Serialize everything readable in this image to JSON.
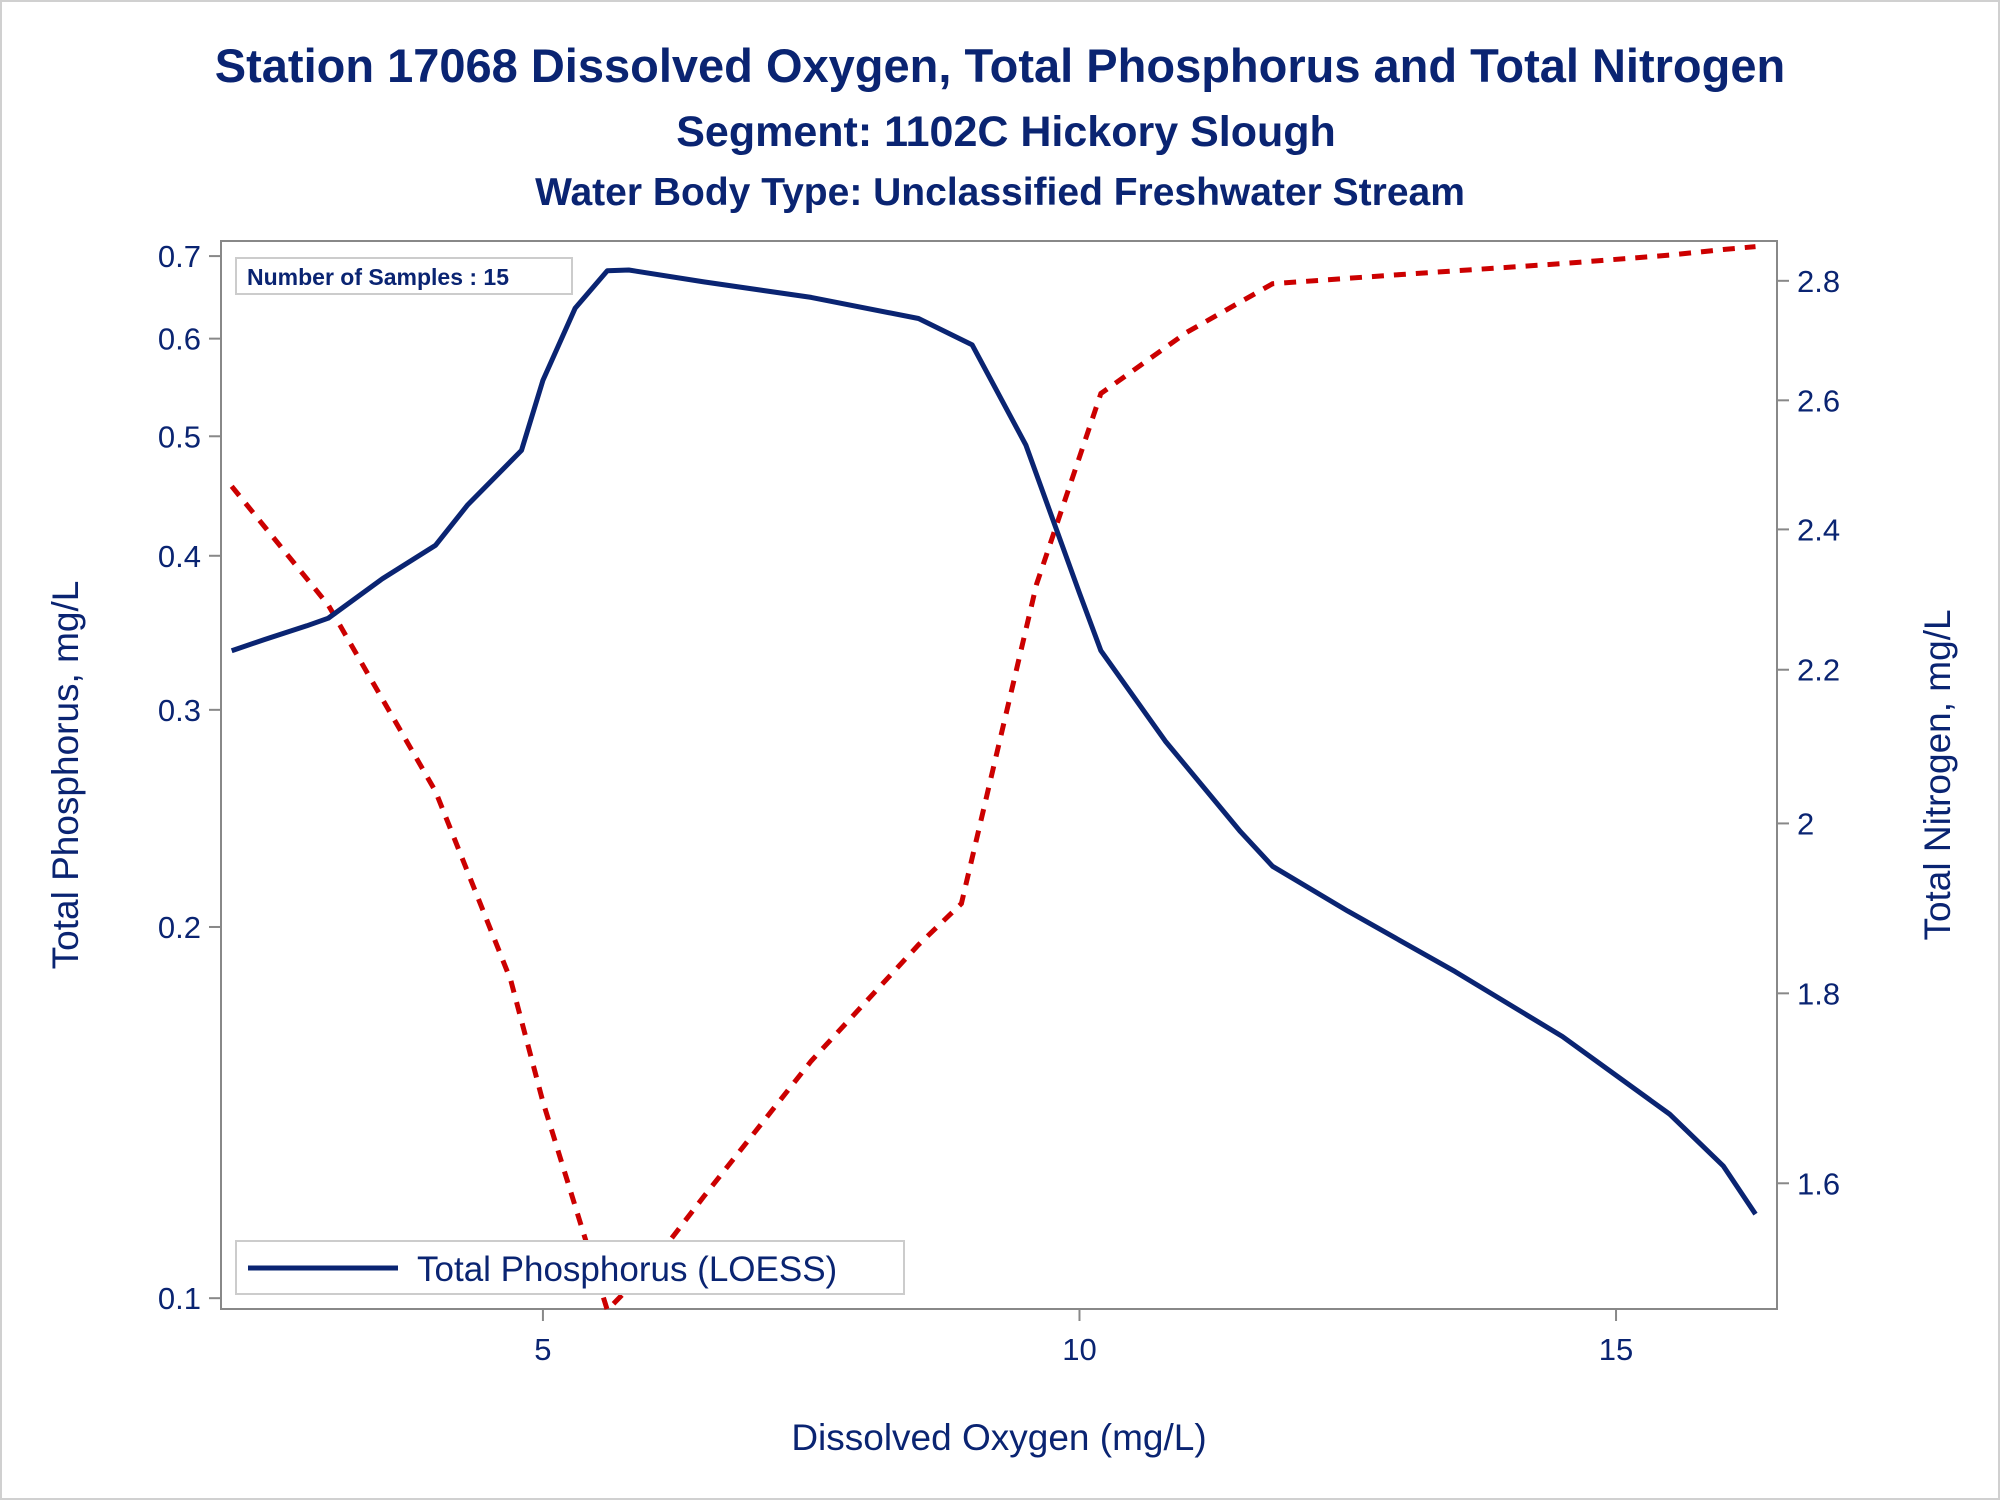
{
  "colors": {
    "text": "#0a2472",
    "tp_line": "#0a2472",
    "tn_line": "#cc0000",
    "axis": "#888888"
  },
  "titles": {
    "line1": "Station 17068  Dissolved Oxygen, Total Phosphorus and Total Nitrogen",
    "line2": "Segment: 1102C  Hickory Slough",
    "line3": "Water Body Type: Unclassified Freshwater Stream"
  },
  "inset": {
    "samples_label": "Number of Samples : 15"
  },
  "chart_data": {
    "type": "line",
    "title": "Station 17068  Dissolved Oxygen, Total Phosphorus and Total Nitrogen",
    "xlabel": "Dissolved Oxygen (mg/L)",
    "ylabel_left": "Total Phosphorus, mg/L",
    "ylabel_right": "Total Nitrogen, mg/L",
    "x_ticks": [
      "5",
      "10",
      "15"
    ],
    "y_left_ticks": [
      "0.1",
      "0.2",
      "0.3",
      "0.4",
      "0.5",
      "0.6",
      "0.7"
    ],
    "y_right_ticks": [
      "1.6",
      "1.8",
      "2",
      "2.2",
      "2.4",
      "2.6",
      "2.8"
    ],
    "xlim": [
      2.0,
      16.5
    ],
    "y_left_scale": "log",
    "y_left_lim": [
      0.098,
      0.72
    ],
    "y_right_scale": "log",
    "y_right_lim": [
      1.48,
      2.87
    ],
    "legend_position": "bottom-left",
    "grid": false,
    "series": [
      {
        "name": "Total Phosphorus (LOESS)",
        "axis": "left",
        "style": "solid",
        "x": [
          2.1,
          2.4,
          2.8,
          3.0,
          3.5,
          4.0,
          4.3,
          4.8,
          5.0,
          5.3,
          5.6,
          5.8,
          6.5,
          7.5,
          8.5,
          9.0,
          9.5,
          10.0,
          10.2,
          10.8,
          11.5,
          11.8,
          12.5,
          13.5,
          14.5,
          15.5,
          16.0,
          16.3
        ],
        "y": [
          0.335,
          0.342,
          0.351,
          0.356,
          0.383,
          0.408,
          0.44,
          0.487,
          0.555,
          0.635,
          0.681,
          0.682,
          0.667,
          0.648,
          0.623,
          0.593,
          0.492,
          0.373,
          0.335,
          0.283,
          0.239,
          0.224,
          0.206,
          0.184,
          0.163,
          0.141,
          0.128,
          0.117
        ]
      },
      {
        "name": "",
        "axis": "right",
        "style": "dashed",
        "x": [
          2.1,
          3.0,
          4.0,
          4.7,
          5.0,
          5.6,
          6.0,
          6.5,
          7.5,
          8.5,
          8.9,
          9.6,
          10.2,
          11.0,
          11.8,
          13.0,
          14.5,
          15.5,
          16.0,
          16.3
        ],
        "y": [
          2.465,
          2.29,
          2.04,
          1.815,
          1.683,
          1.479,
          1.52,
          1.587,
          1.726,
          1.855,
          1.903,
          2.32,
          2.611,
          2.712,
          2.795,
          2.811,
          2.83,
          2.845,
          2.855,
          2.86
        ]
      }
    ]
  }
}
